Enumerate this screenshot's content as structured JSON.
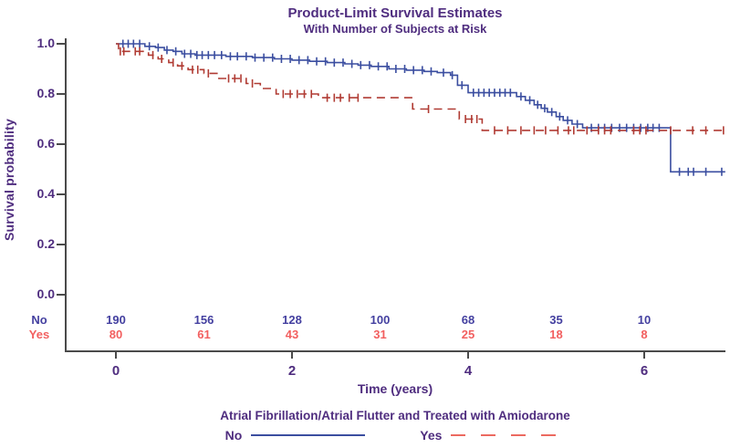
{
  "chart_data": {
    "type": "line",
    "subtype": "kaplan-meier-step",
    "title": "Product-Limit Survival Estimates",
    "subtitle": "With Number of Subjects at Risk",
    "xlabel": "Time (years)",
    "ylabel": "Survival probability",
    "xlim": [
      0,
      6.92
    ],
    "ylim": [
      0,
      1
    ],
    "x_ticks": [
      0,
      2,
      4,
      6
    ],
    "y_ticks": [
      1.0,
      0.8,
      0.6,
      0.4,
      0.2,
      0.0
    ],
    "grid": false,
    "series": [
      {
        "name": "No",
        "style": "solid",
        "color": "#3B4EA0",
        "steps": [
          [
            0,
            1.0
          ],
          [
            0.33,
            0.99
          ],
          [
            0.45,
            0.985
          ],
          [
            0.55,
            0.975
          ],
          [
            0.65,
            0.97
          ],
          [
            0.75,
            0.96
          ],
          [
            0.9,
            0.955
          ],
          [
            1.25,
            0.95
          ],
          [
            1.55,
            0.945
          ],
          [
            1.8,
            0.94
          ],
          [
            2.0,
            0.935
          ],
          [
            2.2,
            0.93
          ],
          [
            2.4,
            0.925
          ],
          [
            2.6,
            0.92
          ],
          [
            2.75,
            0.915
          ],
          [
            2.9,
            0.91
          ],
          [
            3.1,
            0.9
          ],
          [
            3.3,
            0.895
          ],
          [
            3.5,
            0.89
          ],
          [
            3.65,
            0.885
          ],
          [
            3.8,
            0.875
          ],
          [
            3.88,
            0.835
          ],
          [
            4.0,
            0.805
          ],
          [
            4.55,
            0.79
          ],
          [
            4.65,
            0.775
          ],
          [
            4.75,
            0.757
          ],
          [
            4.83,
            0.743
          ],
          [
            4.9,
            0.728
          ],
          [
            5.0,
            0.71
          ],
          [
            5.08,
            0.695
          ],
          [
            5.18,
            0.68
          ],
          [
            5.3,
            0.665
          ],
          [
            6.3,
            0.49
          ]
        ],
        "censor_times": [
          0.08,
          0.14,
          0.2,
          0.27,
          0.38,
          0.48,
          0.58,
          0.68,
          0.78,
          0.85,
          0.92,
          0.98,
          1.05,
          1.12,
          1.2,
          1.3,
          1.38,
          1.48,
          1.58,
          1.68,
          1.78,
          1.88,
          1.98,
          2.08,
          2.18,
          2.28,
          2.38,
          2.48,
          2.58,
          2.68,
          2.78,
          2.88,
          2.98,
          3.08,
          3.18,
          3.28,
          3.38,
          3.48,
          3.58,
          3.72,
          3.82,
          3.93,
          4.06,
          4.12,
          4.18,
          4.24,
          4.3,
          4.36,
          4.42,
          4.48,
          4.6,
          4.7,
          4.79,
          4.87,
          4.95,
          5.04,
          5.13,
          5.24,
          5.4,
          5.48,
          5.55,
          5.63,
          5.72,
          5.8,
          5.88,
          5.96,
          6.04,
          6.1,
          6.17,
          6.4,
          6.5,
          6.56,
          6.7,
          6.88
        ]
      },
      {
        "name": "Yes",
        "style": "dashed",
        "color": "#B03B33",
        "steps": [
          [
            0,
            1.0
          ],
          [
            0.03,
            0.97
          ],
          [
            0.37,
            0.955
          ],
          [
            0.48,
            0.94
          ],
          [
            0.6,
            0.925
          ],
          [
            0.7,
            0.912
          ],
          [
            0.82,
            0.897
          ],
          [
            1.0,
            0.882
          ],
          [
            1.17,
            0.862
          ],
          [
            1.48,
            0.842
          ],
          [
            1.64,
            0.822
          ],
          [
            1.82,
            0.8
          ],
          [
            2.3,
            0.785
          ],
          [
            3.37,
            0.74
          ],
          [
            3.9,
            0.7
          ],
          [
            4.16,
            0.655
          ]
        ],
        "censor_times": [
          0.05,
          0.09,
          0.22,
          0.27,
          0.42,
          0.52,
          0.65,
          0.75,
          0.87,
          0.93,
          1.05,
          1.28,
          1.35,
          1.42,
          1.55,
          1.9,
          1.98,
          2.06,
          2.14,
          2.22,
          2.4,
          2.48,
          2.55,
          2.65,
          2.75,
          3.55,
          3.97,
          4.04,
          4.1,
          4.3,
          4.45,
          4.6,
          4.75,
          4.88,
          5.02,
          5.14,
          5.2,
          5.35,
          5.48,
          5.55,
          5.62,
          5.88,
          5.95,
          6.02,
          6.3,
          6.55,
          6.7,
          6.9
        ]
      }
    ],
    "at_risk": {
      "times": [
        0,
        1,
        2,
        3,
        4,
        5,
        6
      ],
      "rows": [
        {
          "name": "No",
          "counts": [
            190,
            156,
            128,
            100,
            68,
            35,
            10
          ]
        },
        {
          "name": "Yes",
          "counts": [
            80,
            61,
            43,
            31,
            25,
            18,
            8
          ]
        }
      ]
    },
    "legend": {
      "title": "Atrial Fibrillation/Atrial Flutter and Treated with Amiodarone",
      "entries": [
        {
          "label": "No",
          "style": "solid",
          "color": "#3B4EA0"
        },
        {
          "label": "Yes",
          "style": "dashed",
          "color": "#EC6A60"
        }
      ]
    }
  },
  "colors": {
    "title_text": "#4F2D7F",
    "no_text": "#4440A0",
    "yes_text": "#F25F5F",
    "axis_line": "#4A4A4A",
    "no_line": "#3B4EA0",
    "yes_line": "#B03B33",
    "yes_legend_line": "#EC6A60"
  }
}
